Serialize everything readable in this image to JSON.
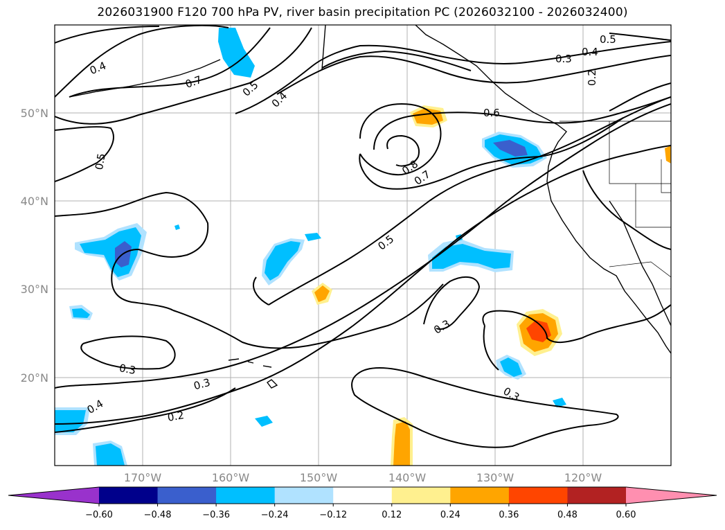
{
  "title": "2026031900 F120 700 hPa PV, river basin precipitation PC (2026032100 - 2026032400)",
  "map": {
    "lat_labels": [
      "50°N",
      "40°N",
      "30°N",
      "20°N"
    ],
    "lon_labels": [
      "170°W",
      "160°W",
      "150°W",
      "140°W",
      "130°W",
      "120°W"
    ],
    "contour_labels": [
      "0.4",
      "0.7",
      "0.5",
      "0.4",
      "0.5",
      "0.4",
      "0.3",
      "0.2",
      "0.6",
      "0.5",
      "0.8",
      "0.7",
      "0.5",
      "0.3",
      "0.3",
      "0.3",
      "0.3",
      "0.2",
      "0.4"
    ]
  },
  "colorbar": {
    "ticks": [
      "−0.60",
      "−0.48",
      "−0.36",
      "−0.24",
      "−0.12",
      "0.12",
      "0.24",
      "0.36",
      "0.48",
      "0.60"
    ],
    "colors": [
      "#9932cc",
      "#00008b",
      "#3a5fcd",
      "#00bfff",
      "#b0e2ff",
      "#ffffff",
      "#fff08f",
      "#ffa500",
      "#ff4500",
      "#b22222",
      "#ff8fb0"
    ]
  },
  "chart_data": {
    "type": "contour-map",
    "title": "2026031900 F120 700 hPa PV, river basin precipitation PC (2026032100 - 2026032400)",
    "lon_range": [
      -180,
      -110
    ],
    "lat_range": [
      10,
      60
    ],
    "contour_levels": [
      0.2,
      0.3,
      0.4,
      0.5,
      0.6,
      0.7,
      0.8
    ],
    "colorbar_levels": [
      -0.6,
      -0.48,
      -0.36,
      -0.24,
      -0.12,
      0.12,
      0.24,
      0.36,
      0.48,
      0.6
    ]
  }
}
